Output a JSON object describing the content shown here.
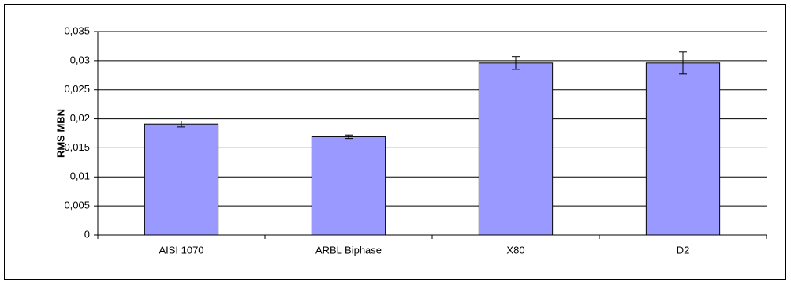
{
  "chart_data": {
    "type": "bar",
    "y_label": "RMS MBN",
    "categories": [
      "AISI 1070",
      "ARBL Biphase",
      "X80",
      "D2"
    ],
    "values": [
      0.0191,
      0.0169,
      0.0296,
      0.0296
    ],
    "errors": [
      0.0005,
      0.0003,
      0.0011,
      0.0019
    ],
    "color": "#9999ff",
    "ylim": [
      0,
      0.035
    ],
    "yticks": [
      0,
      {
        "value": 0.005,
        "label": "0,005"
      },
      {
        "value": 0.01,
        "label": "0,01"
      },
      {
        "value": 0.015,
        "label": "0,015"
      },
      {
        "value": 0.02,
        "label": "0,02"
      },
      {
        "value": 0.025,
        "label": "0,025"
      },
      {
        "value": 0.03,
        "label": "0,03"
      },
      {
        "value": 0.035,
        "label": "0,035"
      }
    ],
    "grid": true
  }
}
